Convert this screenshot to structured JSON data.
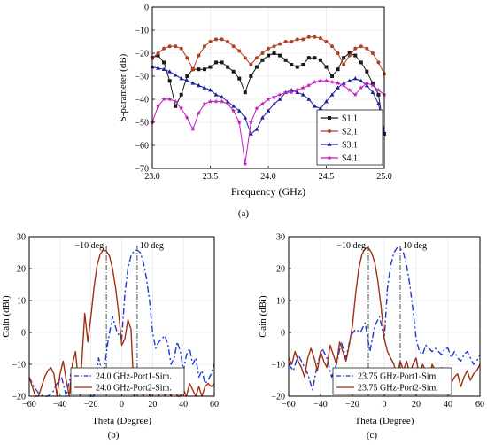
{
  "panels": {
    "a": {
      "label": "(a)"
    },
    "b": {
      "label": "(b)"
    },
    "c": {
      "label": "(c)"
    }
  },
  "chart_data": [
    {
      "id": "a",
      "type": "line",
      "xlabel": "Frequency (GHz)",
      "ylabel": "S-parameter (dB)",
      "xlim": [
        23.0,
        25.0
      ],
      "ylim": [
        -70,
        0
      ],
      "xticks": [
        23.0,
        23.5,
        24.0,
        24.5,
        25.0
      ],
      "xtick_labels": [
        "23.0",
        "23.5",
        "24.0",
        "24.5",
        "25.0"
      ],
      "yticks": [
        0,
        -10,
        -20,
        -30,
        -40,
        -50,
        -60,
        -70
      ],
      "ytick_labels": [
        "0",
        "−10",
        "−20",
        "−30",
        "−40",
        "−50",
        "−60",
        "−70"
      ],
      "grid": true,
      "legend_position": "lower-right",
      "series": [
        {
          "name": "S1,1",
          "color": "#1a1a1a",
          "marker": "square",
          "x": [
            23.0,
            23.05,
            23.1,
            23.15,
            23.2,
            23.25,
            23.3,
            23.35,
            23.4,
            23.45,
            23.5,
            23.55,
            23.6,
            23.65,
            23.7,
            23.75,
            23.8,
            23.85,
            23.9,
            23.95,
            24.0,
            24.05,
            24.1,
            24.15,
            24.2,
            24.25,
            24.3,
            24.35,
            24.4,
            24.45,
            24.5,
            24.55,
            24.6,
            24.65,
            24.7,
            24.75,
            24.8,
            24.85,
            24.9,
            24.95,
            25.0
          ],
          "y": [
            -22,
            -21,
            -24,
            -32,
            -43,
            -38,
            -30,
            -27,
            -27,
            -27,
            -26,
            -24,
            -24,
            -26,
            -28,
            -31,
            -37,
            -30,
            -26,
            -23,
            -21,
            -20,
            -21,
            -23,
            -25,
            -26,
            -25,
            -22,
            -22,
            -23,
            -26,
            -30,
            -27,
            -22,
            -20,
            -21,
            -24,
            -28,
            -33,
            -38,
            -55
          ]
        },
        {
          "name": "S2,1",
          "color": "#b04020",
          "marker": "circle",
          "x": [
            23.0,
            23.05,
            23.1,
            23.15,
            23.2,
            23.25,
            23.3,
            23.35,
            23.4,
            23.45,
            23.5,
            23.55,
            23.6,
            23.65,
            23.7,
            23.75,
            23.8,
            23.85,
            23.9,
            23.95,
            24.0,
            24.05,
            24.1,
            24.15,
            24.2,
            24.25,
            24.3,
            24.35,
            24.4,
            24.45,
            24.5,
            24.55,
            24.6,
            24.65,
            24.7,
            24.75,
            24.8,
            24.85,
            24.9,
            24.95,
            25.0
          ],
          "y": [
            -22,
            -20,
            -18,
            -17,
            -17,
            -18,
            -22,
            -27,
            -21,
            -17,
            -15,
            -14,
            -14,
            -15,
            -17,
            -19,
            -22,
            -25,
            -22,
            -20,
            -18,
            -17,
            -16,
            -15,
            -15,
            -14,
            -14,
            -13,
            -13,
            -13.5,
            -15,
            -17,
            -20,
            -25,
            -21,
            -18,
            -17,
            -18,
            -20,
            -24,
            -29
          ]
        },
        {
          "name": "S3,1",
          "color": "#1f1f9e",
          "marker": "triangle",
          "x": [
            23.0,
            23.05,
            23.1,
            23.15,
            23.2,
            23.25,
            23.3,
            23.35,
            23.4,
            23.45,
            23.5,
            23.55,
            23.6,
            23.65,
            23.7,
            23.75,
            23.8,
            23.85,
            23.9,
            23.95,
            24.0,
            24.05,
            24.1,
            24.15,
            24.2,
            24.25,
            24.3,
            24.35,
            24.4,
            24.45,
            24.5,
            24.55,
            24.6,
            24.65,
            24.7,
            24.75,
            24.8,
            24.85,
            24.9,
            24.95,
            25.0
          ],
          "y": [
            -26,
            -26.5,
            -27,
            -28,
            -29.5,
            -31,
            -32,
            -33,
            -34,
            -35,
            -36,
            -38,
            -39,
            -41,
            -43,
            -45,
            -48,
            -55,
            -53,
            -48,
            -45,
            -42,
            -40,
            -37,
            -36,
            -37,
            -38,
            -40,
            -43,
            -44,
            -41,
            -38,
            -35,
            -33,
            -32,
            -31,
            -32,
            -34,
            -37,
            -42,
            -55
          ]
        },
        {
          "name": "S4,1",
          "color": "#c020c0",
          "marker": "star",
          "x": [
            23.0,
            23.05,
            23.1,
            23.15,
            23.2,
            23.25,
            23.3,
            23.35,
            23.4,
            23.45,
            23.5,
            23.55,
            23.6,
            23.65,
            23.7,
            23.75,
            23.8,
            23.85,
            23.9,
            23.95,
            24.0,
            24.05,
            24.1,
            24.15,
            24.2,
            24.25,
            24.3,
            24.35,
            24.4,
            24.45,
            24.5,
            24.55,
            24.6,
            24.65,
            24.7,
            24.75,
            24.8,
            24.85,
            24.9,
            24.95,
            25.0
          ],
          "y": [
            -50,
            -43,
            -40,
            -40,
            -41,
            -44,
            -48,
            -53,
            -46,
            -42,
            -41,
            -41,
            -41,
            -42,
            -45,
            -50,
            -68,
            -50,
            -44,
            -42,
            -40,
            -39,
            -38,
            -37,
            -37,
            -36,
            -35,
            -34,
            -32.5,
            -32,
            -32,
            -32.5,
            -33,
            -34,
            -36,
            -38,
            -35,
            -33,
            -34,
            -36,
            -38
          ]
        }
      ]
    },
    {
      "id": "b",
      "type": "line",
      "xlabel": "Theta (Degree)",
      "ylabel": "Gain (dBi)",
      "xlim": [
        -60,
        60
      ],
      "ylim": [
        -20,
        30
      ],
      "xticks": [
        -60,
        -40,
        -20,
        0,
        20,
        40,
        60
      ],
      "xtick_labels": [
        "−60",
        "−40",
        "−20",
        "0",
        "20",
        "40",
        "60"
      ],
      "yticks": [
        -20,
        -10,
        0,
        10,
        20,
        30
      ],
      "ytick_labels": [
        "−20",
        "−10",
        "0",
        "10",
        "20",
        "30"
      ],
      "grid": true,
      "legend_position": "lower-center",
      "annotations": [
        {
          "text": "−10 deg",
          "x": -10
        },
        {
          "text": "10 deg",
          "x": 10
        }
      ],
      "series": [
        {
          "name": "24.0 GHz-Port1-Sim.",
          "color": "#1a3ad0",
          "style": "dashdot",
          "x": [
            -60,
            -57,
            -54,
            -51,
            -48,
            -45,
            -42,
            -39,
            -36,
            -33,
            -30,
            -27,
            -24,
            -21,
            -18,
            -15,
            -12,
            -9,
            -6,
            -3,
            0,
            2,
            4,
            6,
            8,
            10,
            12,
            14,
            16,
            18,
            20,
            22,
            24,
            26,
            28,
            30,
            32,
            34,
            36,
            38,
            40,
            42,
            44,
            46,
            48,
            50,
            52,
            54,
            56,
            58,
            60
          ],
          "y": [
            -14,
            -17,
            -19,
            -20,
            -20,
            -19,
            -16,
            -14,
            -20,
            -13,
            -16,
            -20,
            -14,
            -20,
            -20,
            -8,
            -14,
            -3,
            5,
            0,
            -2,
            12,
            20,
            24,
            25.5,
            25.8,
            25,
            22,
            17,
            10,
            0,
            -5,
            -3,
            -2,
            -1,
            -4,
            -10,
            -8,
            -3,
            -6,
            -12,
            -7,
            -5,
            -10,
            -8,
            -14,
            -12,
            -16,
            -15,
            -13,
            -10
          ]
        },
        {
          "name": "24.0 GHz-Port2-Sim.",
          "color": "#a03010",
          "style": "solid",
          "x": [
            -60,
            -58,
            -56,
            -54,
            -52,
            -50,
            -48,
            -46,
            -44,
            -42,
            -40,
            -38,
            -36,
            -34,
            -32,
            -30,
            -28,
            -26,
            -24,
            -22,
            -20,
            -18,
            -16,
            -14,
            -12,
            -10,
            -8,
            -6,
            -4,
            -2,
            0,
            2,
            4,
            6,
            8,
            10,
            12,
            14,
            16,
            18,
            20,
            22,
            24,
            26,
            28,
            30,
            32,
            34,
            36,
            38,
            40,
            42,
            44,
            46,
            48,
            50,
            52,
            54,
            56,
            58,
            60
          ],
          "y": [
            -14,
            -17,
            -20,
            -20,
            -17,
            -14,
            -12,
            -11,
            -13,
            -20,
            -13,
            -9,
            -15,
            -20,
            -10,
            -6,
            -16,
            -10,
            6,
            -3,
            5,
            14,
            21,
            24.5,
            25.8,
            25.5,
            24,
            20,
            14,
            6,
            -4,
            -2,
            4,
            1,
            -20,
            -12,
            -17,
            -20,
            -13,
            -20,
            -15,
            -13,
            -20,
            -14,
            -20,
            -18,
            -20,
            -16,
            -20,
            -20,
            -18,
            -20,
            -16,
            -18,
            -20,
            -17,
            -20,
            -17,
            -16,
            -17,
            -16
          ]
        }
      ]
    },
    {
      "id": "c",
      "type": "line",
      "xlabel": "Theta (Degree)",
      "ylabel": "Gain (dBi)",
      "xlim": [
        -60,
        60
      ],
      "ylim": [
        -20,
        30
      ],
      "xticks": [
        -60,
        -40,
        -20,
        0,
        20,
        40,
        60
      ],
      "xtick_labels": [
        "−60",
        "−40",
        "−20",
        "0",
        "20",
        "40",
        "60"
      ],
      "yticks": [
        -20,
        -10,
        0,
        10,
        20,
        30
      ],
      "ytick_labels": [
        "−20",
        "−10",
        "0",
        "10",
        "20",
        "30"
      ],
      "grid": true,
      "legend_position": "lower-center",
      "annotations": [
        {
          "text": "−10 deg",
          "x": -10
        },
        {
          "text": "10 deg",
          "x": 10
        }
      ],
      "series": [
        {
          "name": "23.75 GHz-Port1-Sim.",
          "color": "#1a3ad0",
          "style": "dashdot",
          "x": [
            -60,
            -57,
            -54,
            -51,
            -48,
            -45,
            -42,
            -39,
            -36,
            -33,
            -30,
            -27,
            -24,
            -21,
            -18,
            -15,
            -12,
            -9,
            -6,
            -3,
            0,
            2,
            4,
            6,
            8,
            10,
            12,
            14,
            16,
            18,
            20,
            22,
            24,
            26,
            28,
            30,
            32,
            34,
            36,
            38,
            40,
            42,
            44,
            46,
            48,
            50,
            52,
            54,
            56,
            58,
            60
          ],
          "y": [
            -10,
            -12,
            -7,
            -10,
            -13,
            -18,
            -10,
            -5,
            -8,
            -14,
            -10,
            -3,
            -8,
            -1,
            1,
            0,
            3,
            -6,
            2,
            5,
            -2,
            14,
            21,
            25,
            26.5,
            26.3,
            25,
            21,
            15,
            7,
            -2,
            -6,
            -7,
            -4,
            -5,
            -6,
            -5,
            -6,
            -7,
            -5,
            -5,
            -8,
            -6,
            -8,
            -9,
            -7,
            -6,
            -8,
            -10,
            -9,
            -7
          ]
        },
        {
          "name": "23.75 GHz-Port2-Sim.",
          "color": "#a03010",
          "style": "solid",
          "x": [
            -60,
            -58,
            -56,
            -54,
            -52,
            -50,
            -48,
            -46,
            -44,
            -42,
            -40,
            -38,
            -36,
            -34,
            -32,
            -30,
            -28,
            -26,
            -24,
            -22,
            -20,
            -18,
            -16,
            -14,
            -12,
            -10,
            -8,
            -6,
            -4,
            -2,
            0,
            2,
            4,
            6,
            8,
            10,
            12,
            14,
            16,
            18,
            20,
            22,
            24,
            26,
            28,
            30,
            32,
            34,
            36,
            38,
            40,
            42,
            44,
            46,
            48,
            50,
            52,
            54,
            56,
            58,
            60
          ],
          "y": [
            -8,
            -10,
            -6,
            -9,
            -11,
            -14,
            -8,
            -5,
            -8,
            -12,
            -6,
            -9,
            -11,
            -4,
            -7,
            -10,
            -3,
            -6,
            -9,
            -4,
            2,
            12,
            20,
            24.5,
            26.3,
            26.5,
            25,
            22,
            16,
            8,
            -2,
            -6,
            -8,
            -10,
            -14,
            -9,
            -12,
            -9,
            -13,
            -10,
            -8,
            -14,
            -10,
            -12,
            -16,
            -10,
            -12,
            -17,
            -11,
            -15,
            -12,
            -16,
            -14,
            -13,
            -17,
            -14,
            -12,
            -15,
            -13,
            -12,
            -10
          ]
        }
      ]
    }
  ]
}
